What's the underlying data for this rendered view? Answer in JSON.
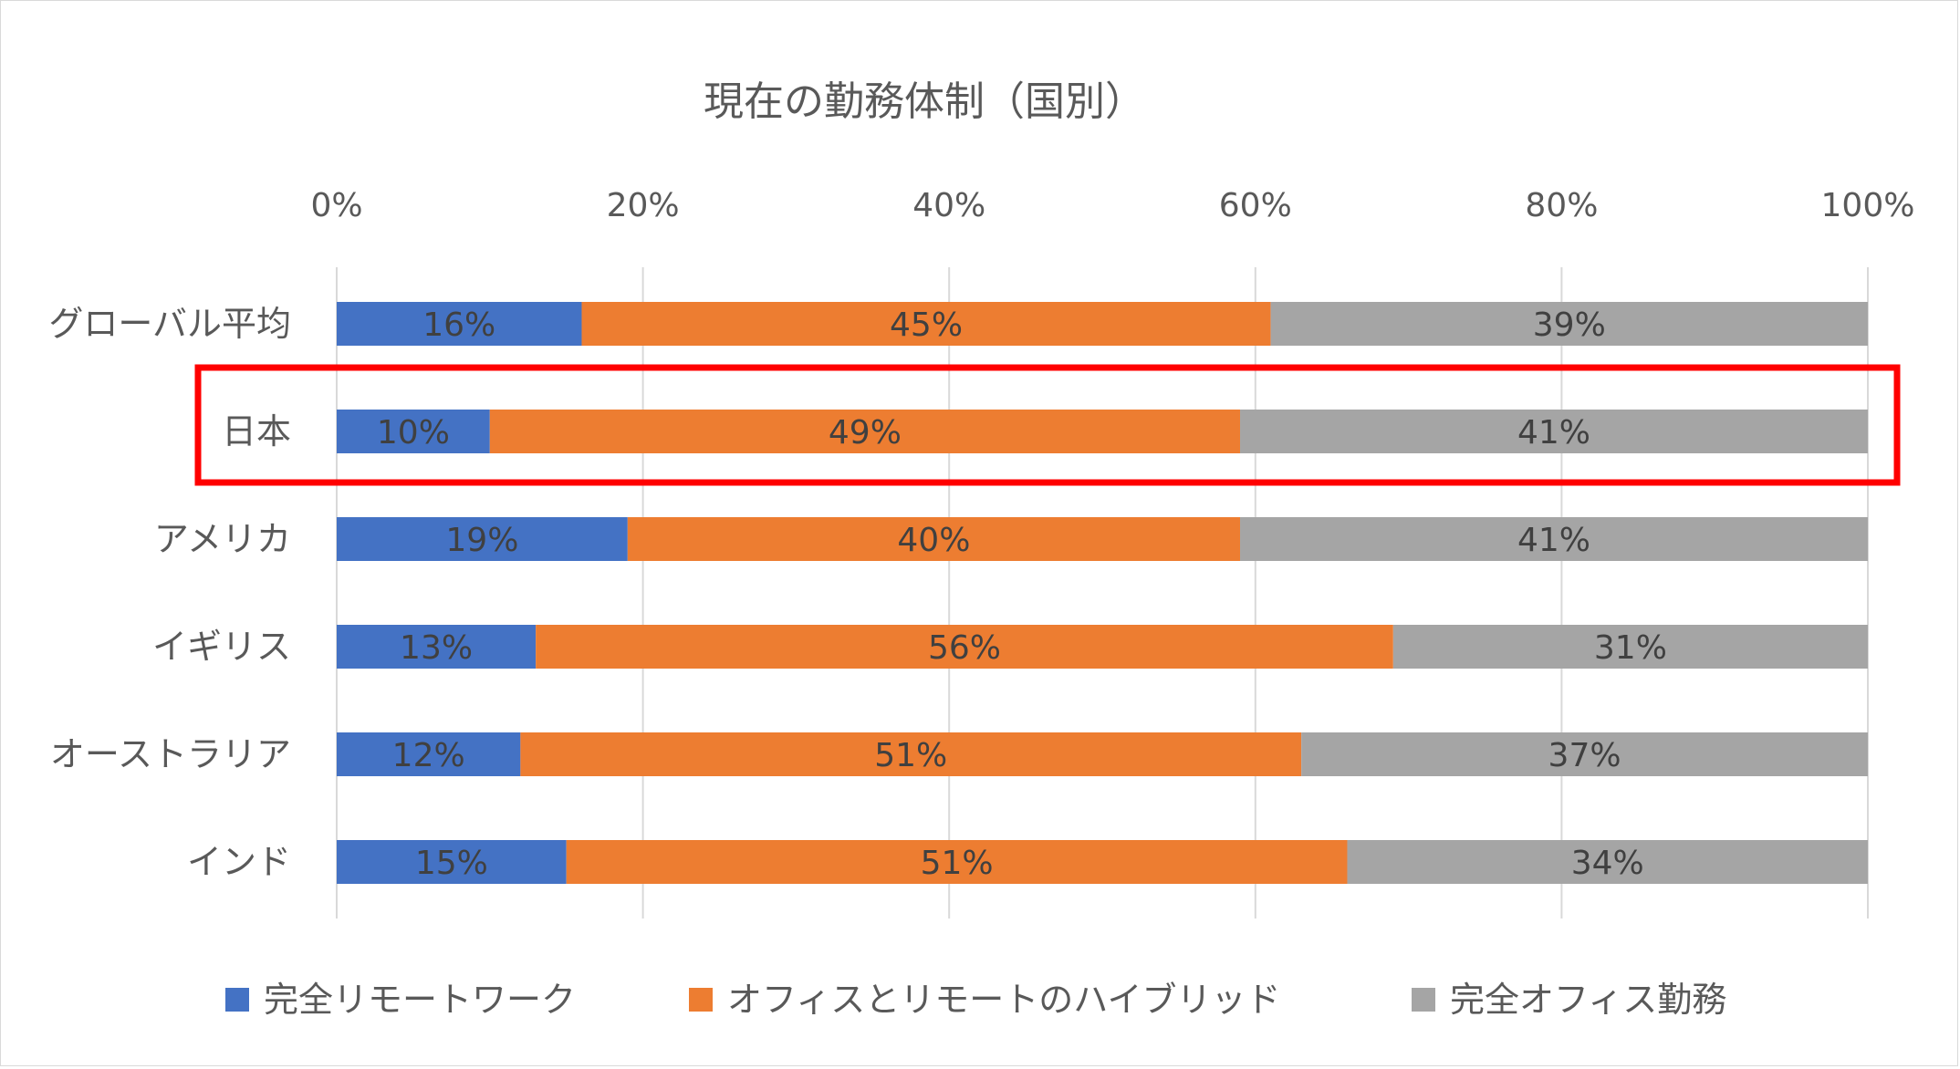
{
  "chart_data": {
    "type": "bar",
    "orientation": "horizontal",
    "stacked": "percent",
    "title": "現在の勤務体制（国別）",
    "categories": [
      "グローバル平均",
      "日本",
      "アメリカ",
      "イギリス",
      "オーストラリア",
      "インド"
    ],
    "series": [
      {
        "name": "完全リモートワーク",
        "color": "#4472c4",
        "values": [
          16,
          10,
          19,
          13,
          12,
          15
        ]
      },
      {
        "name": "オフィスとリモートのハイブリッド",
        "color": "#ed7d31",
        "values": [
          45,
          49,
          40,
          56,
          51,
          51
        ]
      },
      {
        "name": "完全オフィス勤務",
        "color": "#a5a5a5",
        "values": [
          39,
          41,
          41,
          31,
          37,
          34
        ]
      }
    ],
    "xaxis": {
      "position": "top",
      "ticks": [
        "0%",
        "20%",
        "40%",
        "60%",
        "80%",
        "100%"
      ],
      "tick_values": [
        0,
        20,
        40,
        60,
        80,
        100
      ],
      "xlim": [
        0,
        100
      ]
    },
    "grid": true,
    "legend": "bottom",
    "highlight": {
      "category": "日本",
      "color": "#ff0000"
    }
  }
}
